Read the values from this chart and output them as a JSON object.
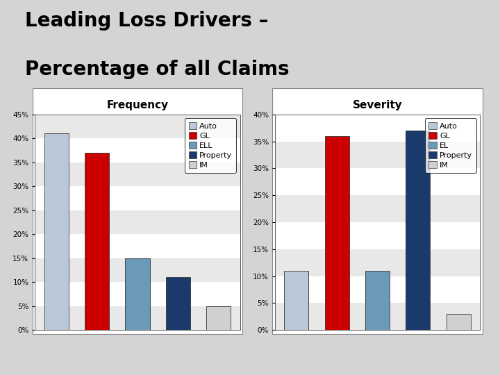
{
  "title_line1": "Leading Loss Drivers –",
  "title_line2": "Percentage of all Claims",
  "title_color": "#000000",
  "title_fontsize": 20,
  "background_color": "#d4d4d4",
  "chart_bg": "#ffffff",
  "freq_subtitle": "Frequency",
  "sev_subtitle": "Severity",
  "freq_categories": [
    "Auto",
    "GL",
    "ELL",
    "Property",
    "IM"
  ],
  "freq_values": [
    0.41,
    0.37,
    0.15,
    0.11,
    0.05
  ],
  "freq_colors": [
    "#b8c8d8",
    "#cc0000",
    "#6b9ab8",
    "#1a3a6b",
    "#d0d0d0"
  ],
  "sev_categories": [
    "Auto",
    "GL",
    "EL",
    "Property",
    "IM"
  ],
  "sev_values": [
    0.11,
    0.36,
    0.11,
    0.37,
    0.03
  ],
  "sev_colors": [
    "#b8c8d8",
    "#cc0000",
    "#6b9ab8",
    "#1a3a6b",
    "#d0d0d0"
  ],
  "freq_ylim": [
    0,
    0.45
  ],
  "sev_ylim": [
    0,
    0.4
  ],
  "freq_yticks": [
    0.0,
    0.05,
    0.1,
    0.15,
    0.2,
    0.25,
    0.3,
    0.35,
    0.4,
    0.45
  ],
  "sev_yticks": [
    0.0,
    0.05,
    0.1,
    0.15,
    0.2,
    0.25,
    0.3,
    0.35,
    0.4
  ],
  "divider_color": "#aa0000",
  "stripe_color": "#e8e8e8",
  "legend_fontsize": 8,
  "subtitle_fontsize": 11
}
